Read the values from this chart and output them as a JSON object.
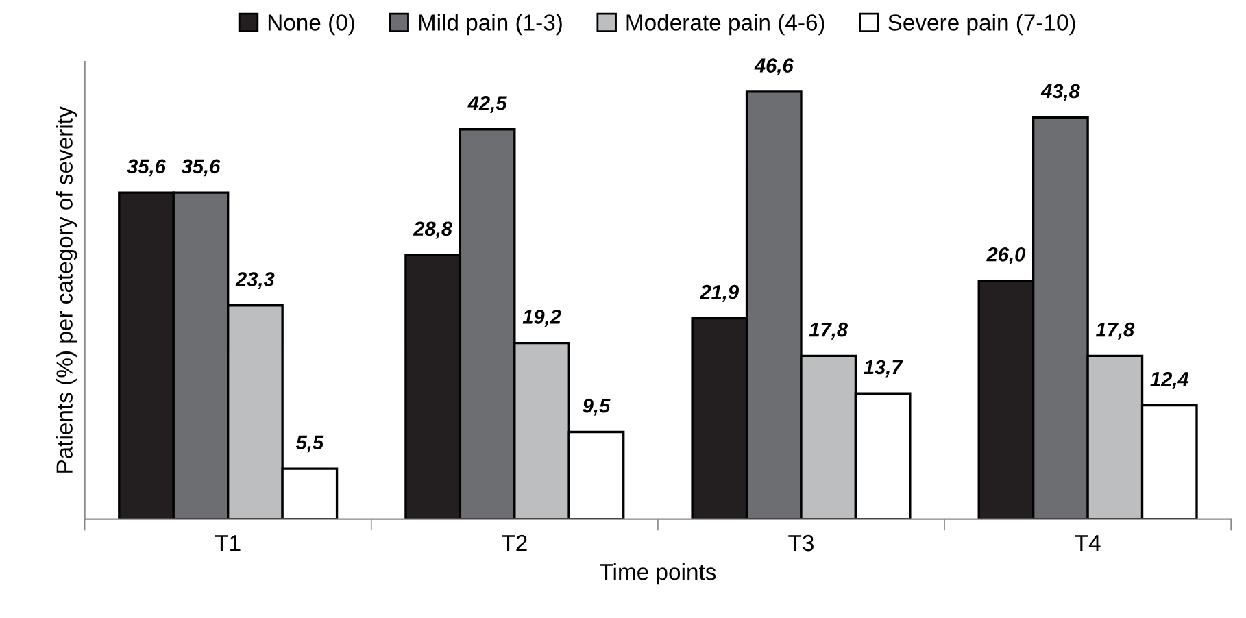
{
  "chart_data": {
    "type": "bar",
    "xlabel": "Time points",
    "ylabel": "Patients (%) per category of severity",
    "categories": [
      "T1",
      "T2",
      "T3",
      "T4"
    ],
    "series": [
      {
        "name": "None (0)",
        "color": "#231f20",
        "values": [
          35.6,
          28.8,
          21.9,
          26.0
        ],
        "value_labels": [
          "35,6",
          "28,8",
          "21,9",
          "26,0"
        ]
      },
      {
        "name": "Mild pain (1-3)",
        "color": "#6d6e71",
        "values": [
          35.6,
          42.5,
          46.6,
          43.8
        ],
        "value_labels": [
          "35,6",
          "42,5",
          "46,6",
          "43,8"
        ]
      },
      {
        "name": "Moderate pain (4-6)",
        "color": "#bcbec0",
        "values": [
          23.3,
          19.2,
          17.8,
          17.8
        ],
        "value_labels": [
          "23,3",
          "19,2",
          "17,8",
          "17,8"
        ]
      },
      {
        "name": "Severe pain (7-10)",
        "color": "#ffffff",
        "values": [
          5.5,
          9.5,
          13.7,
          12.4
        ],
        "value_labels": [
          "5,5",
          "9,5",
          "13,7",
          "12,4"
        ]
      }
    ],
    "legend": "top"
  }
}
